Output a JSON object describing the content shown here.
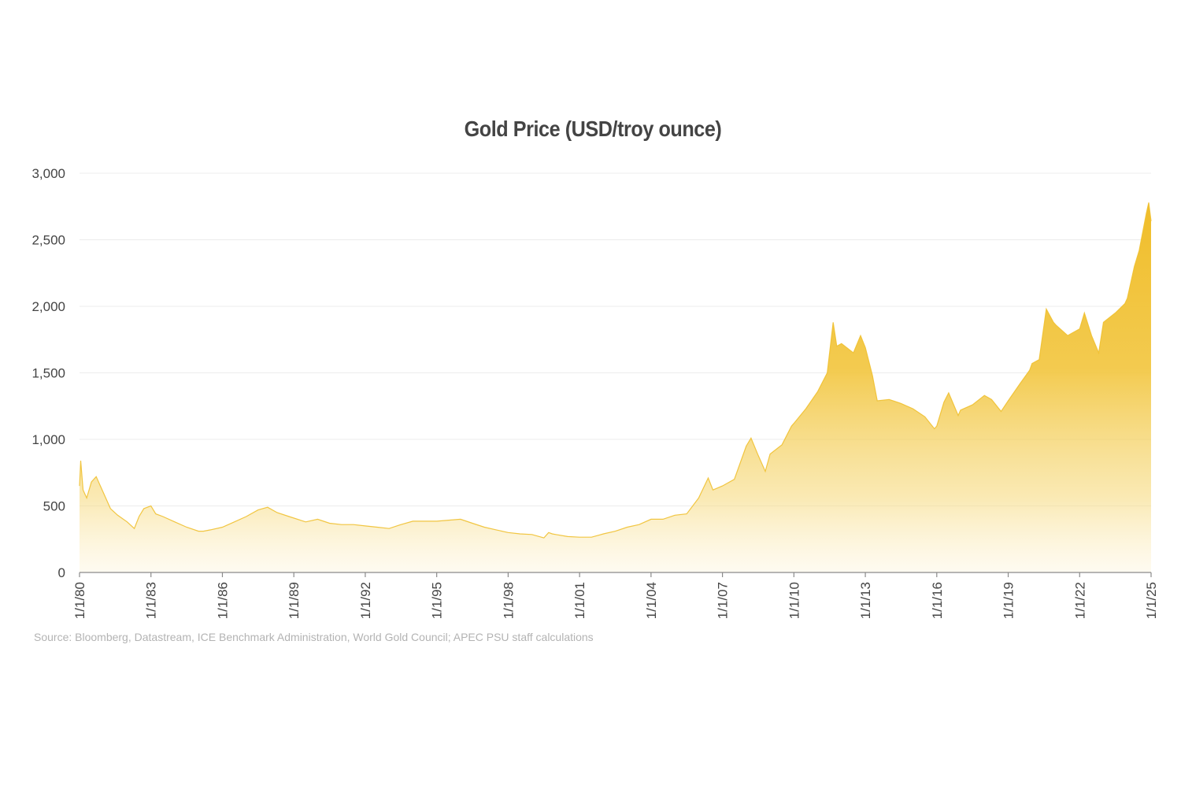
{
  "chart_data": {
    "type": "area",
    "title": "Gold Price (USD/troy ounce)",
    "xlabel": "",
    "ylabel": "",
    "ylim": [
      0,
      3000
    ],
    "yticks": [
      0,
      500,
      1000,
      1500,
      2000,
      2500,
      3000
    ],
    "ytick_labels": [
      "0",
      "500",
      "1,000",
      "1,500",
      "2,000",
      "2,500",
      "3,000"
    ],
    "xlim": [
      1980.0,
      2025.0
    ],
    "xtick_labels": [
      "1/1/80",
      "1/1/83",
      "1/1/86",
      "1/1/89",
      "1/1/92",
      "1/1/95",
      "1/1/98",
      "1/1/01",
      "1/1/04",
      "1/1/07",
      "1/1/10",
      "1/1/13",
      "1/1/16",
      "1/1/19",
      "1/1/22",
      "1/1/25"
    ],
    "xtick_years": [
      1980,
      1983,
      1986,
      1989,
      1992,
      1995,
      1998,
      2001,
      2004,
      2007,
      2010,
      2013,
      2016,
      2019,
      2022,
      2025
    ],
    "grid": true,
    "legend": "none",
    "series": [
      {
        "color": "#f0c030",
        "x": [
          1980.0,
          1980.05,
          1980.15,
          1980.3,
          1980.5,
          1980.7,
          1980.9,
          1981.1,
          1981.3,
          1981.6,
          1982.0,
          1982.3,
          1982.5,
          1982.7,
          1983.0,
          1983.2,
          1983.5,
          1984.0,
          1984.5,
          1985.0,
          1985.2,
          1985.5,
          1986.0,
          1986.5,
          1987.0,
          1987.5,
          1987.9,
          1988.3,
          1988.8,
          1989.5,
          1990.0,
          1990.5,
          1991.0,
          1991.5,
          1992.0,
          1992.5,
          1993.0,
          1993.5,
          1994.0,
          1995.0,
          1996.0,
          1996.5,
          1997.0,
          1997.5,
          1998.0,
          1998.5,
          1999.0,
          1999.5,
          1999.7,
          1999.85,
          2000.0,
          2000.5,
          2001.0,
          2001.5,
          2002.0,
          2002.5,
          2003.0,
          2003.5,
          2004.0,
          2004.5,
          2005.0,
          2005.5,
          2006.0,
          2006.4,
          2006.6,
          2007.0,
          2007.5,
          2008.0,
          2008.2,
          2008.5,
          2008.8,
          2009.0,
          2009.5,
          2009.9,
          2010.0,
          2010.5,
          2011.0,
          2011.4,
          2011.65,
          2011.8,
          2012.0,
          2012.5,
          2012.8,
          2013.0,
          2013.3,
          2013.5,
          2014.0,
          2014.5,
          2015.0,
          2015.5,
          2015.9,
          2016.0,
          2016.3,
          2016.5,
          2016.9,
          2017.0,
          2017.5,
          2018.0,
          2018.3,
          2018.7,
          2019.0,
          2019.5,
          2019.9,
          2020.0,
          2020.3,
          2020.6,
          2020.9,
          2021.0,
          2021.5,
          2022.0,
          2022.2,
          2022.5,
          2022.8,
          2023.0,
          2023.5,
          2023.9,
          2024.0,
          2024.3,
          2024.5,
          2024.8,
          2024.9,
          2025.0
        ],
        "y": [
          650,
          840,
          620,
          560,
          680,
          720,
          640,
          560,
          480,
          430,
          380,
          330,
          420,
          480,
          500,
          440,
          420,
          380,
          340,
          310,
          310,
          320,
          340,
          380,
          420,
          470,
          490,
          450,
          420,
          380,
          400,
          370,
          360,
          360,
          350,
          340,
          330,
          360,
          385,
          385,
          400,
          370,
          340,
          320,
          300,
          290,
          285,
          260,
          300,
          290,
          285,
          270,
          265,
          265,
          290,
          310,
          340,
          360,
          400,
          400,
          430,
          440,
          560,
          710,
          620,
          650,
          700,
          950,
          1010,
          880,
          760,
          890,
          960,
          1100,
          1120,
          1230,
          1360,
          1500,
          1880,
          1700,
          1720,
          1650,
          1780,
          1690,
          1480,
          1290,
          1300,
          1270,
          1230,
          1170,
          1080,
          1100,
          1280,
          1350,
          1180,
          1220,
          1260,
          1330,
          1300,
          1210,
          1290,
          1420,
          1520,
          1570,
          1600,
          1980,
          1880,
          1860,
          1780,
          1830,
          1950,
          1780,
          1650,
          1880,
          1950,
          2020,
          2060,
          2300,
          2420,
          2700,
          2780,
          2640
        ]
      }
    ],
    "source": "Source: Bloomberg, Datastream, ICE Benchmark Administration, World Gold Council; APEC PSU staff calculations"
  }
}
